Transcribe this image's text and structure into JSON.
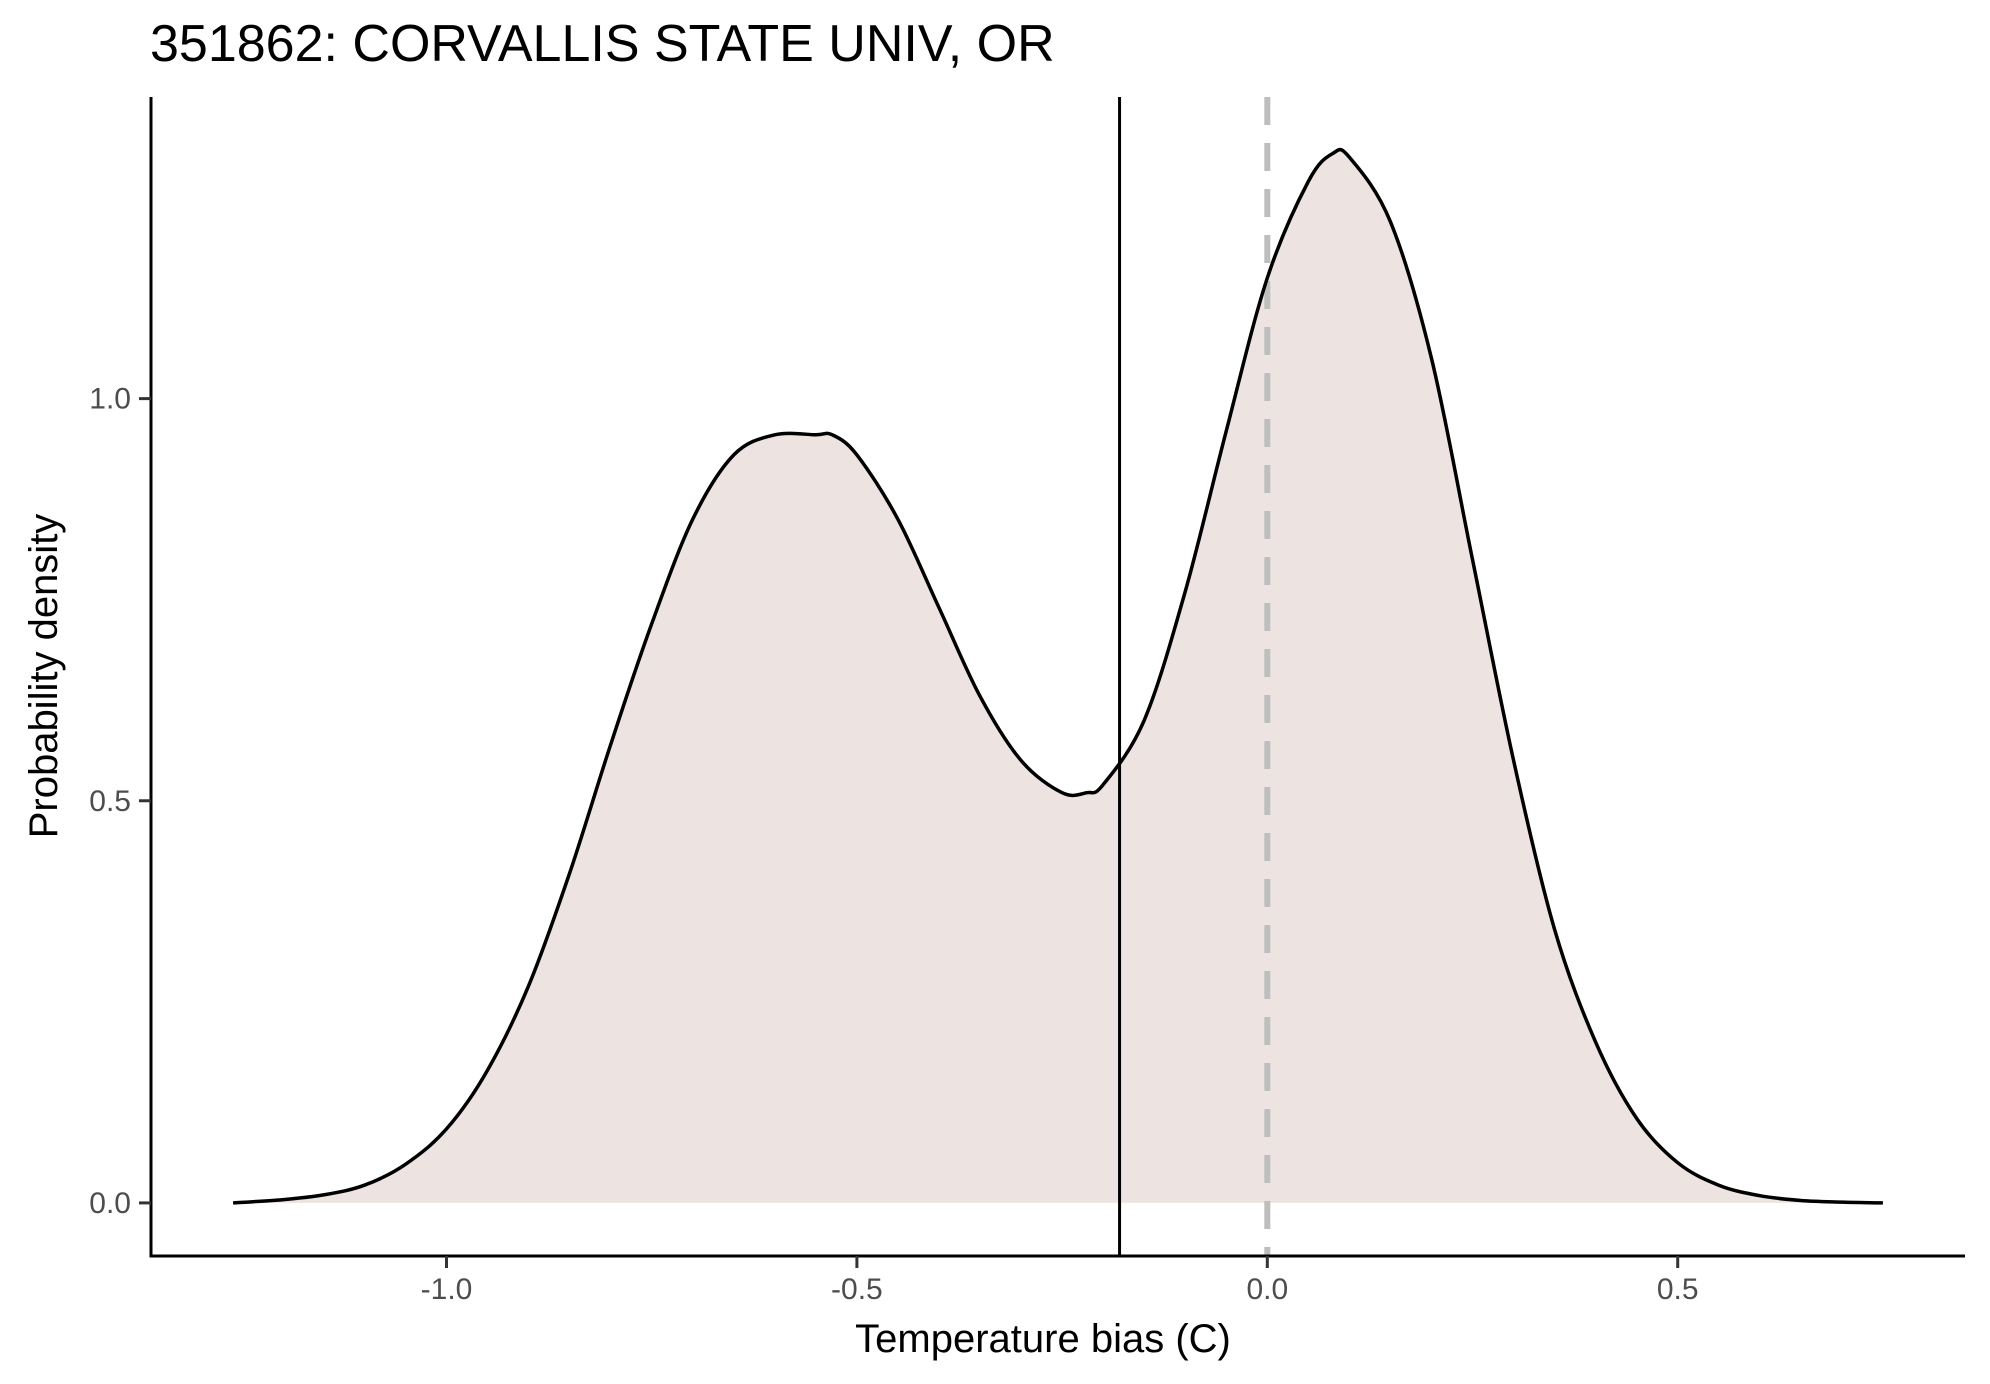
{
  "chart_data": {
    "type": "area",
    "title": "351862: CORVALLIS STATE UNIV, OR",
    "xlabel": "Temperature bias (C)",
    "ylabel": "Probability density",
    "xlim": [
      -1.36,
      0.85
    ],
    "ylim": [
      -0.066,
      1.375
    ],
    "x_ticks": [
      -1.0,
      -0.5,
      0.0,
      0.5
    ],
    "x_tick_labels": [
      "-1.0",
      "-0.5",
      "0.0",
      "0.5"
    ],
    "y_ticks": [
      0.0,
      0.5,
      1.0
    ],
    "y_tick_labels": [
      "0.0",
      "0.5",
      "1.0"
    ],
    "grid": false,
    "fill_color": "#ede4e1",
    "line_color": "#000000",
    "density": {
      "x": [
        -1.26,
        -1.2,
        -1.15,
        -1.1,
        -1.05,
        -1.0,
        -0.95,
        -0.9,
        -0.85,
        -0.8,
        -0.75,
        -0.7,
        -0.65,
        -0.6,
        -0.55,
        -0.53,
        -0.5,
        -0.45,
        -0.4,
        -0.35,
        -0.3,
        -0.25,
        -0.22,
        -0.2,
        -0.15,
        -0.1,
        -0.05,
        0.0,
        0.05,
        0.08,
        0.1,
        0.15,
        0.2,
        0.25,
        0.3,
        0.35,
        0.4,
        0.45,
        0.5,
        0.55,
        0.6,
        0.65,
        0.7,
        0.75
      ],
      "y": [
        0.0,
        0.004,
        0.01,
        0.022,
        0.048,
        0.092,
        0.165,
        0.27,
        0.41,
        0.57,
        0.72,
        0.85,
        0.93,
        0.955,
        0.955,
        0.955,
        0.93,
        0.85,
        0.74,
        0.63,
        0.55,
        0.51,
        0.51,
        0.52,
        0.6,
        0.76,
        0.96,
        1.15,
        1.27,
        1.305,
        1.3,
        1.22,
        1.05,
        0.8,
        0.55,
        0.34,
        0.2,
        0.105,
        0.05,
        0.022,
        0.009,
        0.003,
        0.001,
        0.0
      ]
    },
    "reference_lines": [
      {
        "x": -0.18,
        "style": "solid",
        "color": "#000000"
      },
      {
        "x": 0.0,
        "style": "dashed",
        "color": "#bebebe"
      }
    ]
  }
}
